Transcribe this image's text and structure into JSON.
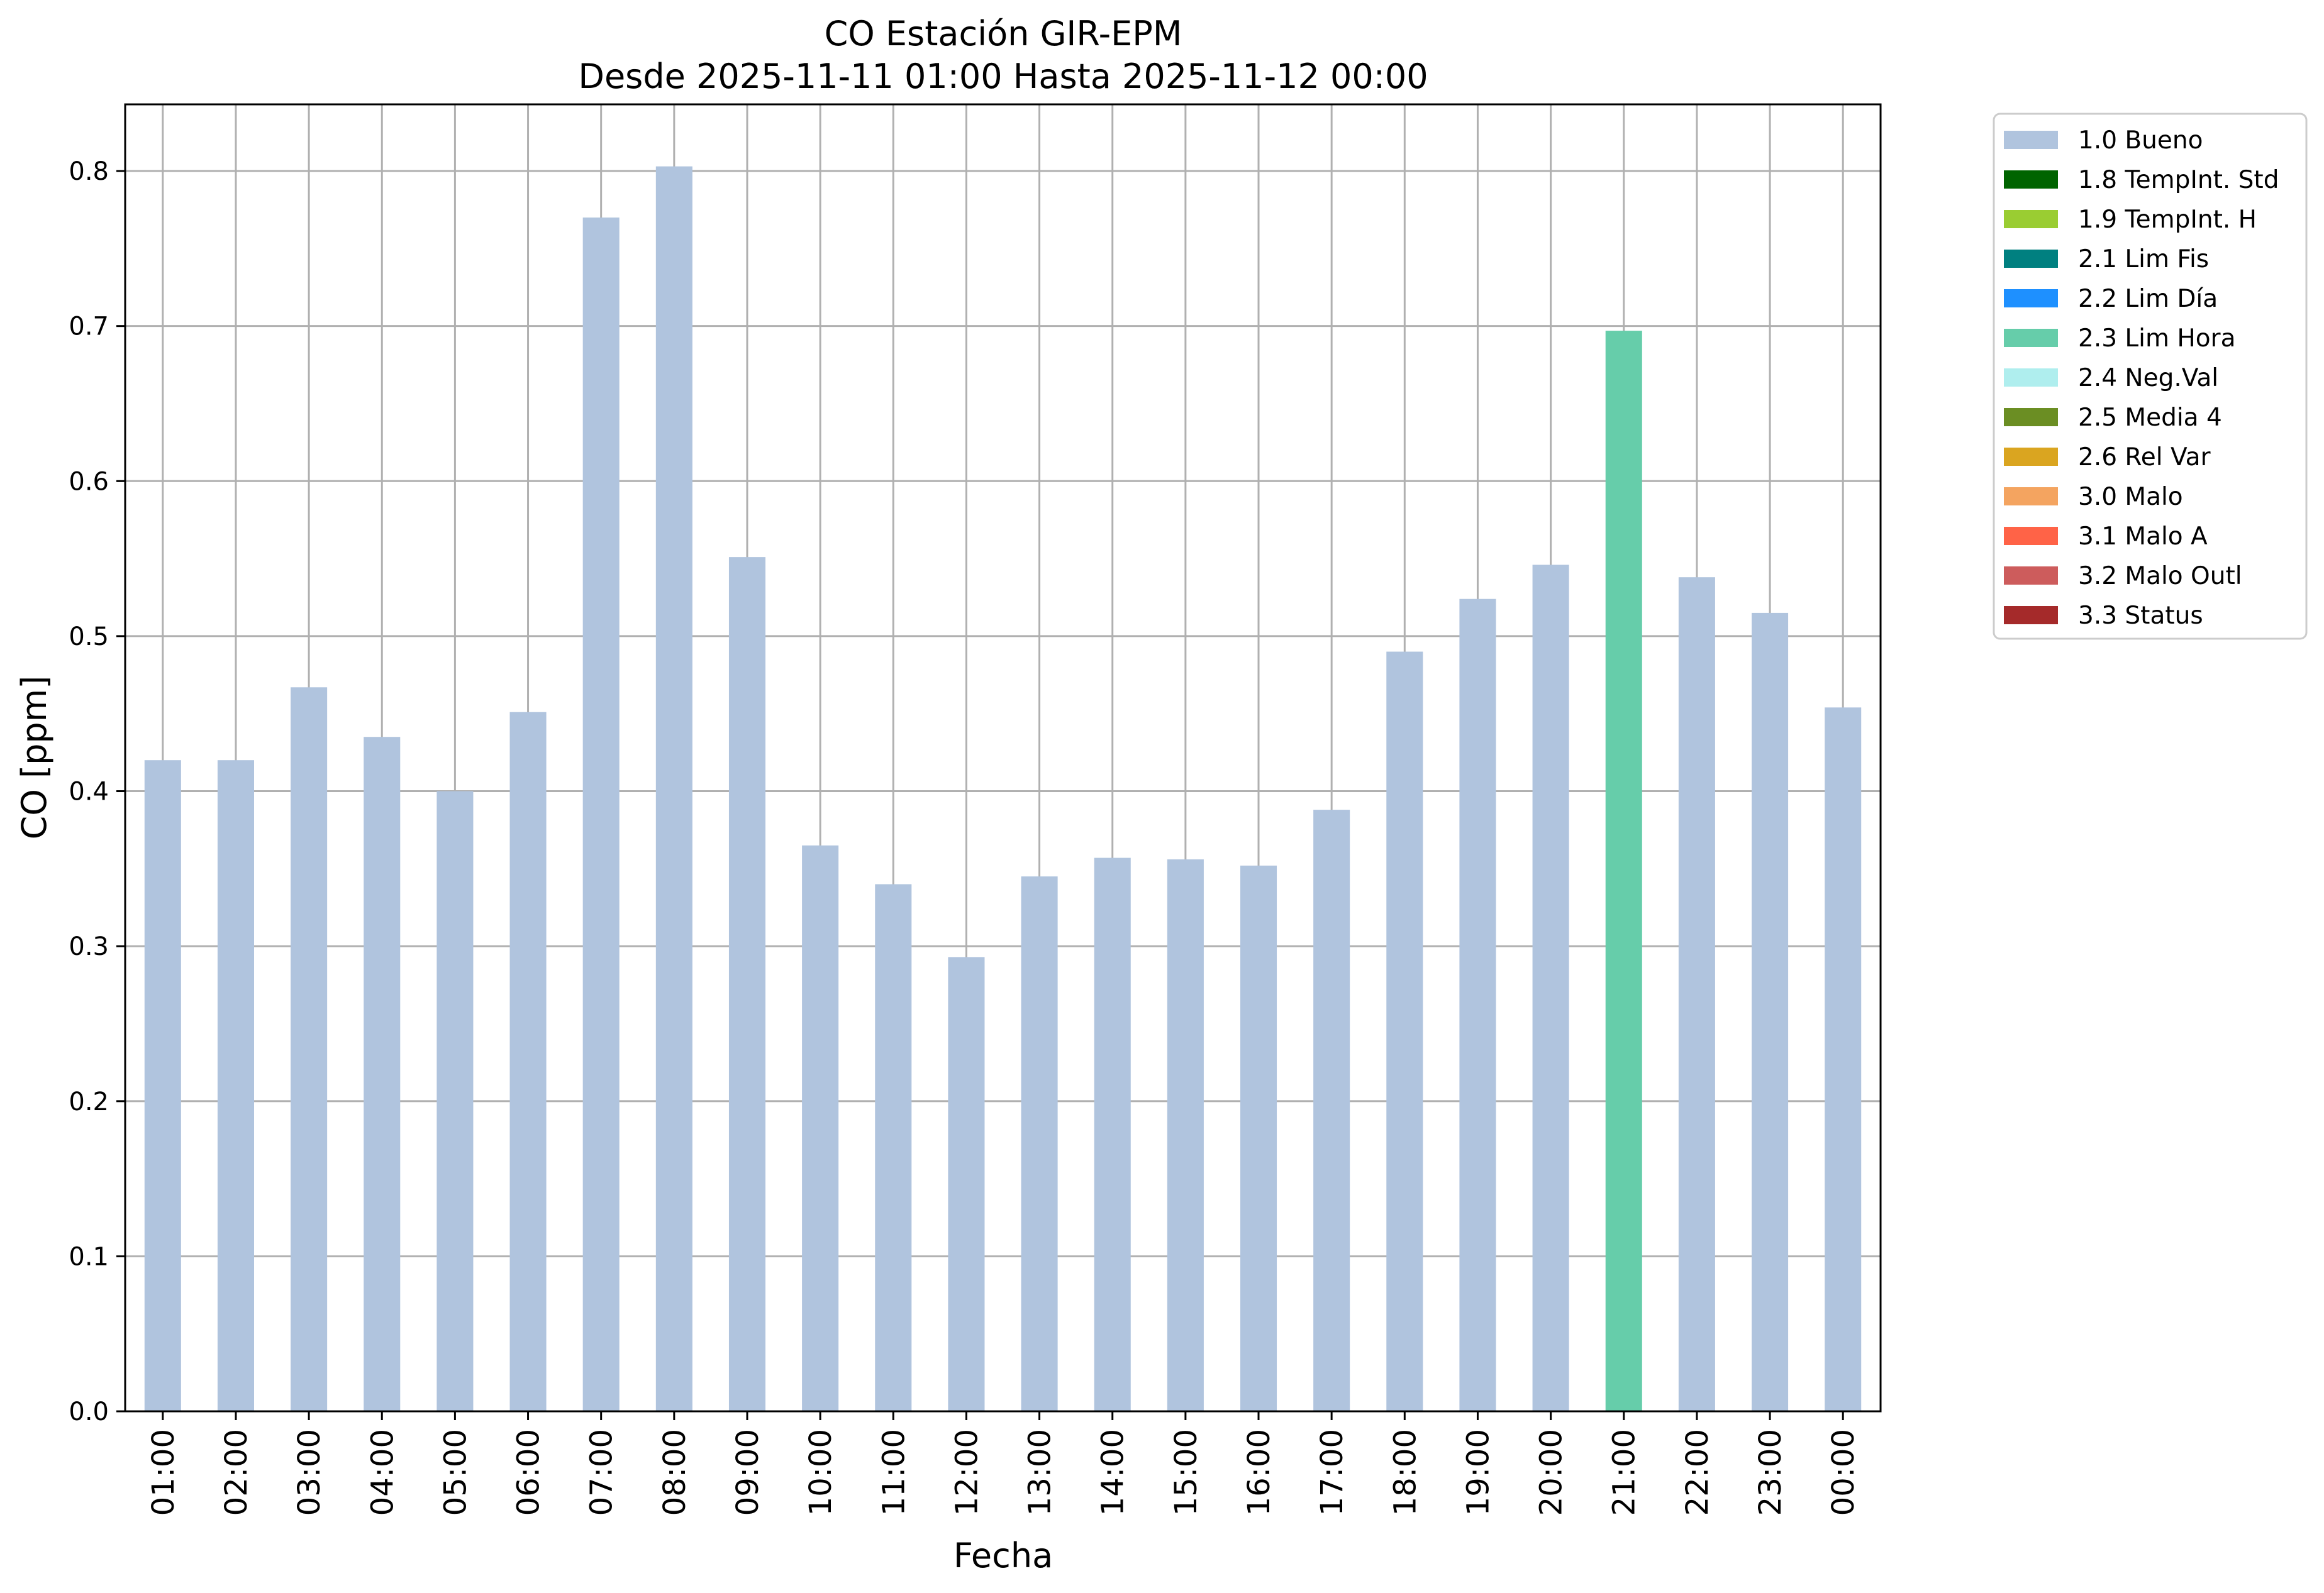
{
  "chart_data": {
    "type": "bar",
    "title": "CO Estación GIR-EPM",
    "subtitle": "Desde 2025-11-11 01:00 Hasta 2025-11-12 00:00",
    "xlabel": "Fecha",
    "ylabel": "CO [ppm]",
    "ylim": [
      0,
      0.843
    ],
    "yticks": [
      "0.0",
      "0.1",
      "0.2",
      "0.3",
      "0.4",
      "0.5",
      "0.6",
      "0.7",
      "0.8"
    ],
    "grid": true,
    "legend_position": "outside-top-right",
    "categories": [
      "01:00",
      "02:00",
      "03:00",
      "04:00",
      "05:00",
      "06:00",
      "07:00",
      "08:00",
      "09:00",
      "10:00",
      "11:00",
      "12:00",
      "13:00",
      "14:00",
      "15:00",
      "16:00",
      "17:00",
      "18:00",
      "19:00",
      "20:00",
      "21:00",
      "22:00",
      "23:00",
      "00:00"
    ],
    "values": [
      0.42,
      0.42,
      0.467,
      0.435,
      0.4,
      0.451,
      0.77,
      0.803,
      0.551,
      0.365,
      0.34,
      0.293,
      0.345,
      0.357,
      0.356,
      0.352,
      0.388,
      0.49,
      0.524,
      0.546,
      0.697,
      0.538,
      0.515,
      0.454
    ],
    "flags": [
      "1.0 Bueno",
      "1.0 Bueno",
      "1.0 Bueno",
      "1.0 Bueno",
      "1.0 Bueno",
      "1.0 Bueno",
      "1.0 Bueno",
      "1.0 Bueno",
      "1.0 Bueno",
      "1.0 Bueno",
      "1.0 Bueno",
      "1.0 Bueno",
      "1.0 Bueno",
      "1.0 Bueno",
      "1.0 Bueno",
      "1.0 Bueno",
      "1.0 Bueno",
      "1.0 Bueno",
      "1.0 Bueno",
      "1.0 Bueno",
      "2.3 Lim Hora",
      "1.0 Bueno",
      "1.0 Bueno",
      "1.0 Bueno"
    ],
    "legend": [
      {
        "label": "1.0 Bueno",
        "color": "#b0c4de"
      },
      {
        "label": "1.8 TempInt. Std",
        "color": "#006400"
      },
      {
        "label": "1.9 TempInt. H",
        "color": "#9acd32"
      },
      {
        "label": "2.1 Lim Fis",
        "color": "#008080"
      },
      {
        "label": "2.2 Lim Día",
        "color": "#1e90ff"
      },
      {
        "label": "2.3 Lim Hora",
        "color": "#66cdaa"
      },
      {
        "label": "2.4 Neg.Val",
        "color": "#afeeee"
      },
      {
        "label": "2.5 Media 4",
        "color": "#6b8e23"
      },
      {
        "label": "2.6 Rel Var",
        "color": "#daa520"
      },
      {
        "label": "3.0 Malo",
        "color": "#f4a460"
      },
      {
        "label": "3.1 Malo A",
        "color": "#ff6347"
      },
      {
        "label": "3.2 Malo Outl",
        "color": "#cd5c5c"
      },
      {
        "label": "3.3 Status",
        "color": "#a52a2a"
      }
    ],
    "colors": {
      "grid": "#b0b0b0",
      "axes": "#000000",
      "background": "#ffffff"
    }
  }
}
